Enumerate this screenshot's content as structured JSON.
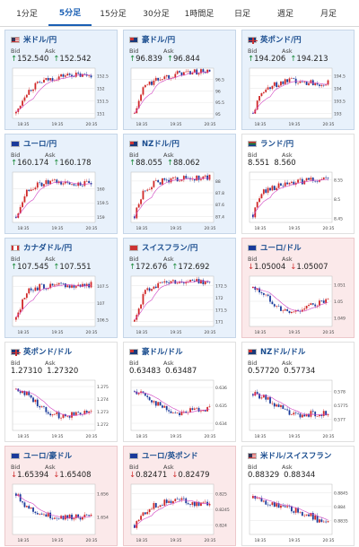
{
  "tabs": [
    {
      "label": "1分足",
      "active": false
    },
    {
      "label": "5分足",
      "active": true
    },
    {
      "label": "15分足",
      "active": false
    },
    {
      "label": "30分足",
      "active": false
    },
    {
      "label": "1時間足",
      "active": false
    },
    {
      "label": "日足",
      "active": false
    },
    {
      "label": "週足",
      "active": false
    },
    {
      "label": "月足",
      "active": false
    }
  ],
  "labels": {
    "bid": "Bid",
    "ask": "Ask"
  },
  "colors": {
    "up_bg": "#e8f1fb",
    "down_bg": "#fbe9ea",
    "up_arrow": "#1a8a3a",
    "down_arrow": "#d03030",
    "title": "#1a4d8f",
    "ma_line": "#d040c0"
  },
  "cards": [
    {
      "title": "米ドル/円",
      "flag": "us-flag",
      "trend": "up",
      "bid": "152.540",
      "ask": "152.542",
      "arrow": "↑",
      "chart_data": {
        "type": "candlestick",
        "x_ticks": [
          "18:35",
          "19:35",
          "20:35"
        ],
        "y_ticks": [
          "152.5",
          "152",
          "151.5",
          "151"
        ],
        "ylim": [
          150.8,
          152.8
        ],
        "trend": [
          151.0,
          151.8,
          152.1,
          152.3,
          152.4,
          152.5,
          152.55,
          152.5,
          152.55
        ]
      }
    },
    {
      "title": "豪ドル/円",
      "flag": "au-flag",
      "trend": "up",
      "bid": "96.839",
      "ask": "96.844",
      "arrow": "↑",
      "chart_data": {
        "type": "candlestick",
        "x_ticks": [
          "18:35",
          "19:35",
          "20:35"
        ],
        "y_ticks": [
          "96.5",
          "96",
          "95.5",
          "95"
        ],
        "ylim": [
          94.8,
          97.0
        ],
        "trend": [
          95.0,
          96.2,
          96.4,
          96.6,
          96.7,
          96.8,
          96.8,
          96.85,
          96.85
        ]
      }
    },
    {
      "title": "英ポンド/円",
      "flag": "uk-flag",
      "trend": "up",
      "bid": "194.206",
      "ask": "194.213",
      "arrow": "↑",
      "chart_data": {
        "type": "candlestick",
        "x_ticks": [
          "18:35",
          "19:35",
          "20:35"
        ],
        "y_ticks": [
          "194.5",
          "194",
          "193.5",
          "193"
        ],
        "ylim": [
          192.8,
          194.8
        ],
        "trend": [
          193.0,
          193.9,
          194.1,
          194.2,
          194.3,
          194.2,
          194.25,
          194.2,
          194.2
        ]
      }
    },
    {
      "title": "ユーロ/円",
      "flag": "eu-flag",
      "trend": "up",
      "bid": "160.174",
      "ask": "160.178",
      "arrow": "↑",
      "chart_data": {
        "type": "candlestick",
        "x_ticks": [
          "18:35",
          "19:35",
          "20:35"
        ],
        "y_ticks": [
          "160",
          "159.5",
          "159"
        ],
        "ylim": [
          158.8,
          160.6
        ],
        "trend": [
          159.0,
          159.9,
          160.1,
          160.2,
          160.25,
          160.2,
          160.2,
          160.18,
          160.17
        ]
      }
    },
    {
      "title": "NZドル/円",
      "flag": "nz-flag",
      "trend": "up",
      "bid": "88.055",
      "ask": "88.062",
      "arrow": "↑",
      "chart_data": {
        "type": "candlestick",
        "x_ticks": [
          "18:35",
          "19:35",
          "20:35"
        ],
        "y_ticks": [
          "88",
          "87.8",
          "87.6",
          "87.4"
        ],
        "ylim": [
          87.3,
          88.15
        ],
        "trend": [
          87.4,
          87.85,
          87.95,
          88.0,
          88.02,
          88.05,
          88.03,
          88.05,
          88.06
        ]
      }
    },
    {
      "title": "ランド/円",
      "flag": "za-flag",
      "trend": "neutral",
      "bid": "8.551",
      "ask": "8.560",
      "arrow": "",
      "chart_data": {
        "type": "candlestick",
        "x_ticks": [
          "18:35",
          "19:35",
          "20:35"
        ],
        "y_ticks": [
          "8.55",
          "8.5",
          "8.45"
        ],
        "ylim": [
          8.44,
          8.57
        ],
        "trend": [
          8.46,
          8.52,
          8.53,
          8.535,
          8.54,
          8.545,
          8.55,
          8.55,
          8.555
        ]
      }
    },
    {
      "title": "カナダドル/円",
      "flag": "ca-flag",
      "trend": "up",
      "bid": "107.545",
      "ask": "107.551",
      "arrow": "↑",
      "chart_data": {
        "type": "candlestick",
        "x_ticks": [
          "18:35",
          "19:35",
          "20:35"
        ],
        "y_ticks": [
          "107.5",
          "107",
          "106.5"
        ],
        "ylim": [
          106.3,
          107.8
        ],
        "trend": [
          106.5,
          107.3,
          107.45,
          107.5,
          107.5,
          107.55,
          107.5,
          107.55,
          107.55
        ]
      }
    },
    {
      "title": "スイスフラン/円",
      "flag": "ch-flag",
      "trend": "up",
      "bid": "172.676",
      "ask": "172.692",
      "arrow": "↑",
      "chart_data": {
        "type": "candlestick",
        "x_ticks": [
          "18:35",
          "19:35",
          "20:35"
        ],
        "y_ticks": [
          "172.5",
          "172",
          "171.5",
          "171"
        ],
        "ylim": [
          170.8,
          172.9
        ],
        "trend": [
          171.0,
          172.2,
          172.5,
          172.6,
          172.7,
          172.65,
          172.7,
          172.68,
          172.68
        ]
      }
    },
    {
      "title": "ユーロ/ドル",
      "flag": "eu-flag",
      "trend": "down",
      "bid": "1.05004",
      "ask": "1.05007",
      "arrow": "↓",
      "chart_data": {
        "type": "candlestick",
        "x_ticks": [
          "18:35",
          "19:35",
          "20:35"
        ],
        "y_ticks": [
          "1.051",
          "1.05",
          "1.049"
        ],
        "ylim": [
          1.0485,
          1.0515
        ],
        "trend": [
          1.0508,
          1.0505,
          1.05,
          1.0495,
          1.0493,
          1.0495,
          1.0497,
          1.0499,
          1.05
        ]
      }
    },
    {
      "title": "英ポンド/ドル",
      "flag": "uk-flag",
      "trend": "neutral",
      "bid": "1.27310",
      "ask": "1.27320",
      "arrow": "",
      "chart_data": {
        "type": "candlestick",
        "x_ticks": [
          "18:35",
          "19:35",
          "20:35"
        ],
        "y_ticks": [
          "1.275",
          "1.274",
          "1.273",
          "1.272"
        ],
        "ylim": [
          1.2715,
          1.2755
        ],
        "trend": [
          1.2748,
          1.2745,
          1.2738,
          1.2732,
          1.2728,
          1.2726,
          1.2728,
          1.273,
          1.2731
        ]
      }
    },
    {
      "title": "豪ドル/ドル",
      "flag": "au-flag",
      "trend": "neutral",
      "bid": "0.63483",
      "ask": "0.63487",
      "arrow": "",
      "chart_data": {
        "type": "candlestick",
        "x_ticks": [
          "18:35",
          "19:35",
          "20:35"
        ],
        "y_ticks": [
          "0.636",
          "0.635",
          "0.634"
        ],
        "ylim": [
          0.6336,
          0.6364
        ],
        "trend": [
          0.6358,
          0.6356,
          0.6352,
          0.6349,
          0.6346,
          0.6346,
          0.6347,
          0.6348,
          0.6348
        ]
      }
    },
    {
      "title": "NZドル/ドル",
      "flag": "nz-flag",
      "trend": "neutral",
      "bid": "0.57720",
      "ask": "0.57734",
      "arrow": "",
      "chart_data": {
        "type": "candlestick",
        "x_ticks": [
          "18:35",
          "19:35",
          "20:35"
        ],
        "y_ticks": [
          "0.578",
          "0.5775",
          "0.577"
        ],
        "ylim": [
          0.5766,
          0.5784
        ],
        "trend": [
          0.5779,
          0.5778,
          0.5776,
          0.5774,
          0.5772,
          0.5771,
          0.5772,
          0.5772,
          0.5772
        ]
      }
    },
    {
      "title": "ユーロ/豪ドル",
      "flag": "eu-flag",
      "trend": "down",
      "bid": "1.65394",
      "ask": "1.65408",
      "arrow": "↓",
      "chart_data": {
        "type": "candlestick",
        "x_ticks": [
          "18:35",
          "19:35",
          "20:35"
        ],
        "y_ticks": [
          "1.656",
          "1.654"
        ],
        "ylim": [
          1.6525,
          1.6568
        ],
        "trend": [
          1.656,
          1.655,
          1.6545,
          1.6542,
          1.654,
          1.654,
          1.654,
          1.654,
          1.654
        ]
      }
    },
    {
      "title": "ユーロ/英ポンド",
      "flag": "eu-flag",
      "trend": "down",
      "bid": "0.82471",
      "ask": "0.82479",
      "arrow": "↓",
      "chart_data": {
        "type": "candlestick",
        "x_ticks": [
          "18:35",
          "19:35",
          "20:35"
        ],
        "y_ticks": [
          "0.825",
          "0.8245",
          "0.824"
        ],
        "ylim": [
          0.8237,
          0.8253
        ],
        "trend": [
          0.824,
          0.8244,
          0.8246,
          0.8247,
          0.8248,
          0.8248,
          0.8247,
          0.8247,
          0.8247
        ]
      }
    },
    {
      "title": "米ドル/スイスフラン",
      "flag": "us-flag",
      "trend": "neutral",
      "bid": "0.88329",
      "ask": "0.88344",
      "arrow": "",
      "chart_data": {
        "type": "candlestick",
        "x_ticks": [
          "18:35",
          "19:35",
          "20:35"
        ],
        "y_ticks": [
          "0.8845",
          "0.884",
          "0.8835"
        ],
        "ylim": [
          0.883,
          0.8848
        ],
        "trend": [
          0.8843,
          0.8842,
          0.8841,
          0.884,
          0.8839,
          0.8838,
          0.8837,
          0.8835,
          0.8834
        ]
      }
    }
  ]
}
